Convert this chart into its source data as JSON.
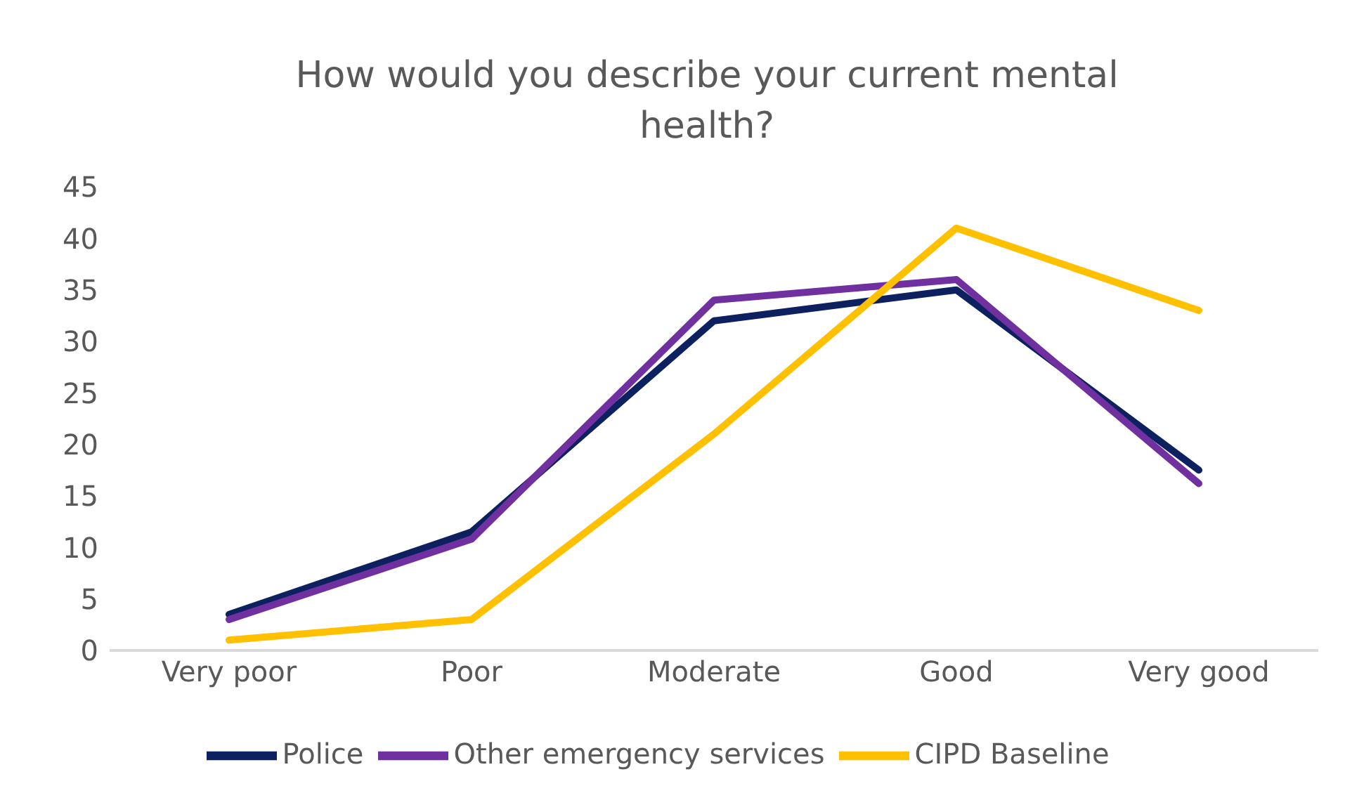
{
  "chart_data": {
    "type": "line",
    "title": "How would you describe your current mental health?",
    "categories": [
      "Very poor",
      "Poor",
      "Moderate",
      "Good",
      "Very good"
    ],
    "series": [
      {
        "name": "Police",
        "color": "#0d2160",
        "values": [
          3.5,
          11.5,
          32,
          35,
          17.5
        ]
      },
      {
        "name": "Other emergency services",
        "color": "#7030a0",
        "values": [
          3,
          10.8,
          34,
          36,
          16.2
        ]
      },
      {
        "name": "CIPD Baseline",
        "color": "#ffc000",
        "values": [
          1,
          3,
          21,
          41,
          33
        ]
      }
    ],
    "ylim": [
      0,
      45
    ],
    "yticks": [
      0,
      5,
      10,
      15,
      20,
      25,
      30,
      35,
      40,
      45
    ],
    "grid": false,
    "legend": "bottom",
    "marker": "none",
    "line_style": "solid"
  }
}
